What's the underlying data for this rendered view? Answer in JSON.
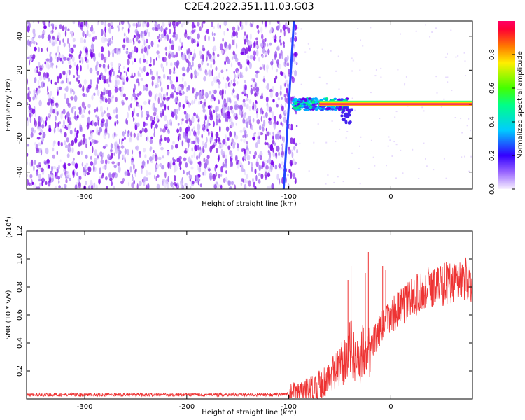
{
  "title": "C2E4.2022.351.11.03.G03",
  "chart_data": [
    {
      "type": "heatmap",
      "name": "spectrogram",
      "xlabel": "Height of straight line (km)",
      "ylabel": "Frequency (Hz)",
      "xlim": [
        -357,
        80
      ],
      "ylim": [
        -50,
        49
      ],
      "x_ticks": [
        -300,
        -200,
        -100,
        0
      ],
      "y_ticks": [
        -40,
        -20,
        0,
        20,
        40
      ],
      "colorbar": {
        "label": "Normalized spectral amplitude",
        "range": [
          0,
          1
        ],
        "ticks": [
          0.0,
          0.2,
          0.4,
          0.6,
          0.8
        ]
      },
      "features": {
        "noise_region_x": [
          -357,
          -100
        ],
        "signal_line_frequency": 0,
        "signal_onset_x": -100,
        "diagonal_trace_x": [
          -105,
          -95
        ]
      }
    },
    {
      "type": "line",
      "name": "snr",
      "xlabel": "Height of straight line (km)",
      "ylabel": "SNR (10 * v/v)",
      "scale_label": "(x10^4)",
      "scale_base": "(x10",
      "scale_exp": "4",
      "xlim": [
        -357,
        80
      ],
      "ylim": [
        0,
        1.2
      ],
      "x_ticks": [
        -300,
        -200,
        -100,
        0
      ],
      "y_ticks": [
        0.2,
        0.4,
        0.6,
        0.8,
        1.0,
        1.2
      ],
      "y_tick_labels": [
        "0.2",
        "0.4",
        "0.6",
        "0.8",
        "1.0",
        "1.2"
      ],
      "series": [
        {
          "name": "SNR",
          "color": "#ee3333",
          "x": [
            -357,
            -300,
            -250,
            -200,
            -150,
            -120,
            -100,
            -90,
            -80,
            -70,
            -60,
            -50,
            -45,
            -40,
            -35,
            -30,
            -25,
            -22,
            -20,
            -15,
            -10,
            -5,
            0,
            10,
            20,
            30,
            40,
            50,
            60,
            70,
            80
          ],
          "y": [
            0.03,
            0.03,
            0.03,
            0.03,
            0.03,
            0.03,
            0.035,
            0.04,
            0.06,
            0.1,
            0.15,
            0.22,
            0.3,
            0.38,
            0.3,
            0.28,
            0.4,
            0.35,
            0.36,
            0.44,
            0.5,
            0.55,
            0.6,
            0.65,
            0.72,
            0.76,
            0.8,
            0.82,
            0.84,
            0.86,
            0.85
          ]
        }
      ],
      "spikes": [
        {
          "x": -42,
          "y": 0.85
        },
        {
          "x": -39,
          "y": 0.95
        },
        {
          "x": -25,
          "y": 0.9
        },
        {
          "x": -22,
          "y": 1.05
        },
        {
          "x": -8,
          "y": 0.95
        },
        {
          "x": -5,
          "y": 0.92
        }
      ]
    }
  ]
}
